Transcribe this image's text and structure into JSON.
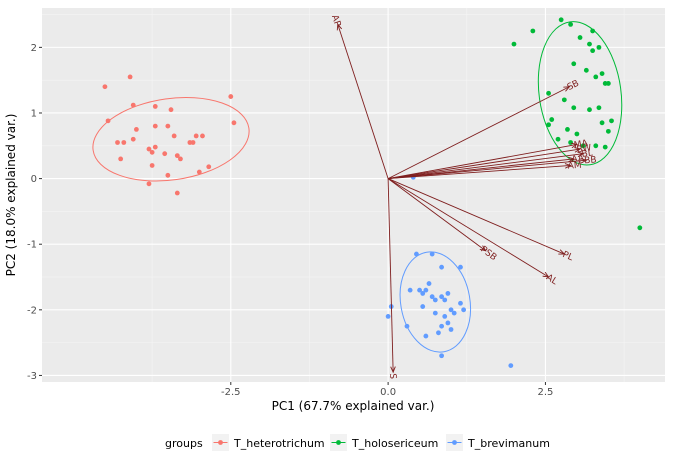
{
  "chart_data": {
    "type": "scatter",
    "xlabel": "PC1 (67.7% explained var.)",
    "ylabel": "PC2 (18.0% explained var.)",
    "xlim": [
      -5.5,
      4.4
    ],
    "ylim": [
      -3.1,
      2.6
    ],
    "x_ticks": [
      -2.5,
      0.0,
      2.5
    ],
    "x_tick_labels": [
      "-2.5",
      "0.0",
      "2.5"
    ],
    "y_ticks": [
      -3,
      -2,
      -1,
      0,
      1,
      2
    ],
    "y_tick_labels": [
      "-3",
      "-2",
      "-1",
      "0",
      "1",
      "2"
    ],
    "grid": true,
    "legend_title": "groups",
    "legend_position": "bottom",
    "series": [
      {
        "name": "T_heterotrichum",
        "color": "#F8766D",
        "points": [
          [
            -4.5,
            1.4
          ],
          [
            -4.1,
            1.55
          ],
          [
            -4.45,
            0.88
          ],
          [
            -4.2,
            0.55
          ],
          [
            -4.05,
            0.6
          ],
          [
            -4.0,
            0.75
          ],
          [
            -4.3,
            0.55
          ],
          [
            -4.25,
            0.3
          ],
          [
            -4.05,
            1.12
          ],
          [
            -3.7,
            1.1
          ],
          [
            -3.7,
            0.8
          ],
          [
            -3.5,
            0.8
          ],
          [
            -3.8,
            0.45
          ],
          [
            -3.75,
            0.4
          ],
          [
            -3.7,
            0.48
          ],
          [
            -3.75,
            0.2
          ],
          [
            -3.8,
            -0.08
          ],
          [
            -3.55,
            0.38
          ],
          [
            -3.45,
            1.05
          ],
          [
            -3.4,
            0.65
          ],
          [
            -3.35,
            0.35
          ],
          [
            -3.3,
            0.3
          ],
          [
            -3.5,
            0.05
          ],
          [
            -3.35,
            -0.22
          ],
          [
            -3.15,
            0.55
          ],
          [
            -3.05,
            0.65
          ],
          [
            -2.95,
            0.65
          ],
          [
            -3.1,
            0.55
          ],
          [
            -3.0,
            0.1
          ],
          [
            -2.85,
            0.18
          ],
          [
            -2.5,
            1.25
          ],
          [
            -2.45,
            0.85
          ]
        ],
        "ellipse": {
          "cx": -3.45,
          "cy": 0.6,
          "rx": 1.25,
          "ry": 0.62,
          "angle_deg": -8
        }
      },
      {
        "name": "T_holosericeum",
        "color": "#00BA38",
        "points": [
          [
            2.0,
            2.05
          ],
          [
            2.3,
            2.25
          ],
          [
            2.75,
            2.42
          ],
          [
            2.9,
            2.35
          ],
          [
            3.05,
            2.15
          ],
          [
            3.25,
            2.25
          ],
          [
            3.2,
            2.05
          ],
          [
            3.25,
            1.95
          ],
          [
            3.35,
            2.0
          ],
          [
            2.95,
            1.75
          ],
          [
            3.15,
            1.65
          ],
          [
            3.4,
            1.6
          ],
          [
            3.45,
            1.45
          ],
          [
            3.5,
            1.45
          ],
          [
            3.3,
            1.55
          ],
          [
            2.55,
            1.3
          ],
          [
            2.8,
            1.2
          ],
          [
            2.95,
            1.08
          ],
          [
            3.2,
            1.05
          ],
          [
            3.35,
            1.08
          ],
          [
            2.6,
            0.9
          ],
          [
            2.55,
            0.82
          ],
          [
            2.85,
            0.75
          ],
          [
            3.0,
            0.68
          ],
          [
            3.4,
            0.85
          ],
          [
            3.5,
            0.72
          ],
          [
            3.55,
            0.88
          ],
          [
            2.7,
            0.6
          ],
          [
            2.9,
            0.55
          ],
          [
            3.1,
            0.5
          ],
          [
            3.3,
            0.5
          ],
          [
            3.45,
            0.48
          ],
          [
            4.0,
            -0.75
          ]
        ],
        "ellipse": {
          "cx": 3.05,
          "cy": 1.3,
          "rx": 0.65,
          "ry": 1.1,
          "angle_deg": -8
        }
      },
      {
        "name": "T_brevimanum",
        "color": "#619CFF",
        "points": [
          [
            0.4,
            0.02
          ],
          [
            0.45,
            -1.15
          ],
          [
            0.7,
            -1.15
          ],
          [
            0.85,
            -1.35
          ],
          [
            1.15,
            -1.35
          ],
          [
            0.35,
            -1.7
          ],
          [
            0.5,
            -1.7
          ],
          [
            0.55,
            -1.75
          ],
          [
            0.6,
            -1.7
          ],
          [
            0.65,
            -1.6
          ],
          [
            0.7,
            -1.8
          ],
          [
            0.75,
            -1.85
          ],
          [
            0.55,
            -1.95
          ],
          [
            0.85,
            -1.8
          ],
          [
            0.9,
            -1.85
          ],
          [
            0.95,
            -1.75
          ],
          [
            1.0,
            -2.0
          ],
          [
            1.05,
            -2.05
          ],
          [
            1.15,
            -1.9
          ],
          [
            1.2,
            -2.0
          ],
          [
            0.75,
            -2.05
          ],
          [
            0.9,
            -2.1
          ],
          [
            0.95,
            -2.2
          ],
          [
            0.85,
            -2.25
          ],
          [
            0.8,
            -2.35
          ],
          [
            1.0,
            -2.3
          ],
          [
            0.3,
            -2.25
          ],
          [
            0.6,
            -2.4
          ],
          [
            0.85,
            -2.7
          ],
          [
            0.05,
            -1.95
          ],
          [
            0.0,
            -2.1
          ],
          [
            1.95,
            -2.85
          ]
        ],
        "ellipse": {
          "cx": 0.75,
          "cy": -1.88,
          "rx": 0.55,
          "ry": 0.77,
          "angle_deg": -10
        }
      }
    ],
    "loadings_color": "#7f1f1f",
    "loadings": [
      {
        "label": "AP",
        "x": -0.8,
        "y": 2.35
      },
      {
        "label": "SB",
        "x": 2.88,
        "y": 1.4
      },
      {
        "label": "MA",
        "x": 3.0,
        "y": 0.52
      },
      {
        "label": "BW",
        "x": 3.05,
        "y": 0.45
      },
      {
        "label": "BL",
        "x": 3.1,
        "y": 0.38
      },
      {
        "label": "AA",
        "x": 2.95,
        "y": 0.3
      },
      {
        "label": "BB",
        "x": 3.15,
        "y": 0.28
      },
      {
        "label": "AM",
        "x": 2.9,
        "y": 0.2
      },
      {
        "label": "PL",
        "x": 2.8,
        "y": -1.15
      },
      {
        "label": "AL",
        "x": 2.55,
        "y": -1.5
      },
      {
        "label": "PSB",
        "x": 1.55,
        "y": -1.1
      },
      {
        "label": "S",
        "x": 0.08,
        "y": -2.95
      }
    ]
  }
}
